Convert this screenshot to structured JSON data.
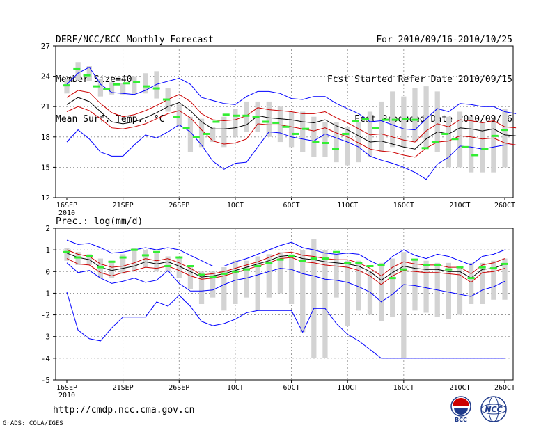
{
  "header": {
    "title": "DERF/NCC/BCC Monthly Forecast",
    "member_size": "Member Size=40",
    "variable": "Mean Surf. Temp.: °C",
    "period": "For 2010/09/16-2010/10/25",
    "started": "Fcst Started Refer Date 2010/09/15",
    "produced": "Fcst Produced Date 2010/09/16"
  },
  "footer": {
    "url": "http://cmdp.ncc.cma.gov.cn",
    "grads": "GrADS: COLA/IGES",
    "logo_bcc": "BCC",
    "logo_ncc": "NCC"
  },
  "colors": {
    "envelope": "#0000ff",
    "quartile": "#cc0000",
    "median": "#000000",
    "box": "#d3d3d3",
    "dash": "#33ee33",
    "grid": "#888888"
  },
  "chart_data": [
    {
      "type": "line",
      "title": "Mean Surf. Temp.: °C",
      "ylim": [
        12,
        27
      ],
      "yticks": [
        12,
        15,
        18,
        21,
        24,
        27
      ],
      "xlim": [
        0,
        39
      ],
      "xtick_positions": [
        0,
        5,
        10,
        15,
        20,
        25,
        30,
        35,
        39
      ],
      "xtick_labels": [
        "16SEP",
        "21SEP",
        "26SEP",
        "1OCT",
        "6OCT",
        "11OCT",
        "16OCT",
        "21OCT",
        "26OCT"
      ],
      "xsub_label": "2010",
      "series": [
        {
          "name": "max",
          "values": [
            17.5,
            18.7,
            17.8,
            16.5,
            16.1,
            16.1,
            17.2,
            18.2,
            17.9,
            18.5,
            19.2,
            18.5,
            17.2,
            15.6,
            14.8,
            15.4,
            15.5,
            17.0,
            18.5,
            18.4,
            18.0,
            17.8,
            17.6,
            18.3,
            17.9,
            17.5,
            17.0,
            16.1,
            15.7,
            15.4,
            15.0,
            14.5,
            13.8,
            15.3,
            16.0,
            17.1,
            17.0,
            16.8,
            17.0,
            17.2,
            17.2
          ]
        },
        {
          "name": "q25",
          "values": [
            20.5,
            21.0,
            20.6,
            19.8,
            18.9,
            18.8,
            19.0,
            19.3,
            19.8,
            20.3,
            20.6,
            19.9,
            18.7,
            17.6,
            17.3,
            17.4,
            17.8,
            19.3,
            19.2,
            19.2,
            19.0,
            18.8,
            18.6,
            18.9,
            18.4,
            18.0,
            17.4,
            16.8,
            16.6,
            16.5,
            16.2,
            16.0,
            16.9,
            17.5,
            17.6,
            18.1,
            18.0,
            17.8,
            17.9,
            17.4,
            17.2
          ]
        },
        {
          "name": "median",
          "values": [
            21.2,
            21.9,
            21.5,
            20.5,
            19.5,
            19.3,
            19.5,
            19.9,
            20.4,
            21.0,
            21.4,
            20.6,
            19.5,
            18.8,
            18.8,
            18.9,
            19.2,
            20.1,
            19.9,
            19.8,
            19.7,
            19.5,
            19.4,
            19.7,
            19.1,
            18.7,
            18.1,
            17.5,
            17.6,
            17.3,
            17.0,
            16.8,
            17.8,
            18.5,
            18.3,
            18.9,
            18.8,
            18.6,
            18.8,
            18.2,
            18.1
          ]
        },
        {
          "name": "q75",
          "values": [
            21.9,
            22.6,
            22.4,
            21.3,
            20.4,
            20.0,
            20.2,
            20.6,
            21.1,
            21.7,
            22.2,
            21.5,
            20.3,
            19.7,
            19.6,
            19.7,
            20.1,
            20.9,
            20.7,
            20.6,
            20.5,
            20.3,
            20.3,
            20.5,
            19.9,
            19.4,
            18.8,
            18.2,
            18.3,
            18.0,
            17.7,
            17.5,
            18.6,
            19.3,
            19.0,
            19.7,
            19.6,
            19.4,
            19.6,
            19.0,
            18.9
          ]
        },
        {
          "name": "min",
          "values": [
            23.2,
            24.3,
            24.9,
            23.2,
            22.4,
            22.3,
            22.2,
            22.6,
            23.2,
            23.5,
            23.8,
            23.2,
            21.9,
            21.6,
            21.3,
            21.2,
            22.0,
            22.5,
            22.5,
            22.3,
            21.8,
            21.7,
            22.0,
            22.0,
            21.3,
            20.8,
            20.3,
            19.5,
            19.6,
            19.2,
            18.8,
            18.7,
            19.8,
            20.8,
            20.5,
            21.3,
            21.2,
            21.0,
            21.0,
            20.5,
            20.3
          ]
        }
      ],
      "boxes": [
        {
          "lo": 22.3,
          "hi": 23.7
        },
        {
          "lo": 23.6,
          "hi": 25.4
        },
        {
          "lo": 23.5,
          "hi": 25.0
        },
        {
          "lo": 22.0,
          "hi": 23.7
        },
        {
          "lo": 22.2,
          "hi": 23.4
        },
        {
          "lo": 22.2,
          "hi": 23.3
        },
        {
          "lo": 22.2,
          "hi": 24.0
        },
        {
          "lo": 22.3,
          "hi": 24.3
        },
        {
          "lo": 21.8,
          "hi": 24.5
        },
        {
          "lo": 20.5,
          "hi": 22.8
        },
        {
          "lo": 19.0,
          "hi": 21.2
        },
        {
          "lo": 16.5,
          "hi": 20.0
        },
        {
          "lo": 17.0,
          "hi": 19.8
        },
        {
          "lo": 17.5,
          "hi": 19.0
        },
        {
          "lo": 17.0,
          "hi": 20.0
        },
        {
          "lo": 18.0,
          "hi": 20.8
        },
        {
          "lo": 18.5,
          "hi": 21.5
        },
        {
          "lo": 18.5,
          "hi": 21.5
        },
        {
          "lo": 18.0,
          "hi": 21.5
        },
        {
          "lo": 17.5,
          "hi": 21.0
        },
        {
          "lo": 17.0,
          "hi": 20.5
        },
        {
          "lo": 16.5,
          "hi": 20.5
        },
        {
          "lo": 16.0,
          "hi": 20.0
        },
        {
          "lo": 16.0,
          "hi": 19.5
        },
        {
          "lo": 15.5,
          "hi": 19.5
        },
        {
          "lo": 15.2,
          "hi": 19.0
        },
        {
          "lo": 15.5,
          "hi": 19.5
        },
        {
          "lo": 16.0,
          "hi": 20.5
        },
        {
          "lo": 16.5,
          "hi": 21.5
        },
        {
          "lo": 17.0,
          "hi": 22.5
        },
        {
          "lo": 17.0,
          "hi": 22.0
        },
        {
          "lo": 17.5,
          "hi": 22.8
        },
        {
          "lo": 17.0,
          "hi": 23.0
        },
        {
          "lo": 16.5,
          "hi": 22.5
        },
        {
          "lo": 15.0,
          "hi": 20.0
        },
        {
          "lo": 15.0,
          "hi": 20.5
        },
        {
          "lo": 14.5,
          "hi": 20.0
        },
        {
          "lo": 14.5,
          "hi": 19.5
        },
        {
          "lo": 14.5,
          "hi": 19.5
        },
        {
          "lo": 15.0,
          "hi": 20.8
        }
      ],
      "dashes": [
        23.1,
        24.7,
        24.1,
        23.0,
        22.7,
        23.2,
        23.3,
        23.4,
        23.0,
        22.8,
        21.7,
        20.0,
        18.9,
        18.0,
        18.3,
        19.5,
        20.2,
        20.1,
        20.1,
        20.0,
        19.5,
        19.4,
        19.0,
        18.3,
        18.8,
        17.5,
        17.4,
        16.8,
        18.3,
        19.6,
        19.8,
        18.9,
        19.7,
        19.7,
        19.8,
        19.7,
        16.9,
        17.5,
        18.3,
        17.8,
        17.0,
        16.2,
        16.8,
        18.1,
        18.7
      ]
    },
    {
      "type": "line",
      "title": "Prec.: log(mm/d)",
      "ylim": [
        -5,
        2
      ],
      "yticks": [
        -5,
        -4,
        -3,
        -2,
        -1,
        0,
        1,
        2
      ],
      "xlim": [
        0,
        39
      ],
      "xtick_positions": [
        0,
        5,
        10,
        15,
        20,
        25,
        30,
        35,
        39
      ],
      "xtick_labels": [
        "16SEP",
        "21SEP",
        "26SEP",
        "1OCT",
        "6OCT",
        "11OCT",
        "16OCT",
        "21OCT",
        "26OCT"
      ],
      "xsub_label": "2010",
      "series": [
        {
          "name": "max",
          "values": [
            1.45,
            1.25,
            1.3,
            1.1,
            0.85,
            0.9,
            1.0,
            1.1,
            1.0,
            1.1,
            1.0,
            0.75,
            0.5,
            0.25,
            0.25,
            0.45,
            0.6,
            0.8,
            1.0,
            1.2,
            1.35,
            1.1,
            1.0,
            0.85,
            0.8,
            0.85,
            0.8,
            0.5,
            0.25,
            0.7,
            1.0,
            0.75,
            0.6,
            0.8,
            0.7,
            0.5,
            0.3,
            0.7,
            0.8,
            1.0
          ]
        },
        {
          "name": "q75",
          "values": [
            1.0,
            0.8,
            0.7,
            0.35,
            0.2,
            0.25,
            0.4,
            0.6,
            0.5,
            0.6,
            0.4,
            0.15,
            -0.15,
            -0.1,
            0.0,
            0.15,
            0.3,
            0.45,
            0.65,
            0.85,
            0.9,
            0.75,
            0.7,
            0.6,
            0.55,
            0.55,
            0.4,
            0.15,
            -0.2,
            0.2,
            0.45,
            0.35,
            0.3,
            0.3,
            0.2,
            0.2,
            -0.1,
            0.3,
            0.4,
            0.6
          ]
        },
        {
          "name": "median",
          "values": [
            0.85,
            0.65,
            0.55,
            0.2,
            0.05,
            0.15,
            0.25,
            0.45,
            0.35,
            0.45,
            0.25,
            0.0,
            -0.25,
            -0.2,
            -0.1,
            0.05,
            0.2,
            0.35,
            0.5,
            0.7,
            0.75,
            0.6,
            0.55,
            0.45,
            0.4,
            0.35,
            0.25,
            0.0,
            -0.4,
            -0.05,
            0.25,
            0.15,
            0.1,
            0.1,
            0.0,
            0.0,
            -0.3,
            0.1,
            0.15,
            0.35
          ]
        },
        {
          "name": "q25",
          "values": [
            0.6,
            0.35,
            0.3,
            -0.05,
            -0.2,
            -0.05,
            0.05,
            0.2,
            0.15,
            0.25,
            0.05,
            -0.2,
            -0.35,
            -0.3,
            -0.2,
            -0.05,
            0.1,
            0.25,
            0.4,
            0.6,
            0.65,
            0.45,
            0.4,
            0.3,
            0.25,
            0.2,
            0.05,
            -0.2,
            -0.6,
            -0.2,
            0.05,
            0.0,
            -0.05,
            -0.05,
            -0.1,
            -0.15,
            -0.5,
            -0.05,
            0.0,
            0.15
          ]
        },
        {
          "name": "min",
          "values": [
            0.4,
            -0.05,
            0.05,
            -0.3,
            -0.55,
            -0.45,
            -0.3,
            -0.5,
            -0.4,
            0.05,
            -0.55,
            -0.9,
            -0.9,
            -0.85,
            -0.6,
            -0.4,
            -0.3,
            -0.15,
            0.0,
            0.15,
            0.1,
            -0.1,
            -0.2,
            -0.35,
            -0.4,
            -0.5,
            -0.7,
            -0.95,
            -1.4,
            -1.05,
            -0.6,
            -0.65,
            -0.75,
            -0.85,
            -0.95,
            -1.05,
            -1.15,
            -0.85,
            -0.7,
            -0.45
          ]
        },
        {
          "name": "envmin",
          "values": [
            -0.95,
            -2.7,
            -3.1,
            -3.2,
            -2.6,
            -2.1,
            -2.1,
            -2.1,
            -1.4,
            -1.6,
            -1.1,
            -1.6,
            -2.3,
            -2.5,
            -2.4,
            -2.2,
            -1.9,
            -1.8,
            -1.8,
            -1.8,
            -1.8,
            -2.8,
            -1.7,
            -1.7,
            -2.4,
            -2.9,
            -3.2,
            -3.6,
            -4.0,
            -4.0,
            -4.0,
            -4.0,
            -4.0,
            -4.0,
            -4.0,
            -4.0,
            -4.0,
            -4.0,
            -4.0,
            -4.0
          ]
        }
      ],
      "boxes": [
        {
          "lo": 0.5,
          "hi": 1.1
        },
        {
          "lo": 0.3,
          "hi": 0.9
        },
        {
          "lo": 0.3,
          "hi": 0.8
        },
        {
          "lo": -0.3,
          "hi": 0.6
        },
        {
          "lo": -0.3,
          "hi": 0.5
        },
        {
          "lo": -0.1,
          "hi": 0.8
        },
        {
          "lo": 0.0,
          "hi": 1.1
        },
        {
          "lo": 0.2,
          "hi": 1.0
        },
        {
          "lo": 0.0,
          "hi": 0.9
        },
        {
          "lo": 0.0,
          "hi": 0.7
        },
        {
          "lo": -0.3,
          "hi": 0.7
        },
        {
          "lo": -0.8,
          "hi": 0.2
        },
        {
          "lo": -1.5,
          "hi": 0.0
        },
        {
          "lo": -1.2,
          "hi": 0.0
        },
        {
          "lo": -1.8,
          "hi": 0.2
        },
        {
          "lo": -1.5,
          "hi": 0.5
        },
        {
          "lo": -1.2,
          "hi": 0.5
        },
        {
          "lo": -1.8,
          "hi": 0.7
        },
        {
          "lo": -1.2,
          "hi": 0.8
        },
        {
          "lo": -1.0,
          "hi": 0.9
        },
        {
          "lo": -1.5,
          "hi": 0.8
        },
        {
          "lo": -2.8,
          "hi": 1.0
        },
        {
          "lo": -4.0,
          "hi": 1.5
        },
        {
          "lo": -4.0,
          "hi": 1.0
        },
        {
          "lo": -1.2,
          "hi": 0.8
        },
        {
          "lo": -2.5,
          "hi": 0.5
        },
        {
          "lo": -1.8,
          "hi": 0.5
        },
        {
          "lo": -2.0,
          "hi": 0.0
        },
        {
          "lo": -2.3,
          "hi": 0.4
        },
        {
          "lo": -2.1,
          "hi": 0.6
        },
        {
          "lo": -4.0,
          "hi": 0.9
        },
        {
          "lo": -1.8,
          "hi": 0.6
        },
        {
          "lo": -1.9,
          "hi": 0.5
        },
        {
          "lo": -2.1,
          "hi": 0.4
        },
        {
          "lo": -2.2,
          "hi": 0.4
        },
        {
          "lo": -2.0,
          "hi": 0.2
        },
        {
          "lo": -1.5,
          "hi": 0.4
        },
        {
          "lo": -1.5,
          "hi": 0.4
        },
        {
          "lo": -1.3,
          "hi": 0.5
        },
        {
          "lo": -1.3,
          "hi": 0.6
        }
      ],
      "dashes": [
        0.9,
        0.65,
        0.7,
        0.2,
        0.45,
        0.65,
        1.0,
        0.75,
        0.9,
        0.25,
        0.65,
        0.25,
        -0.15,
        -0.25,
        -0.1,
        0.0,
        0.1,
        0.25,
        0.4,
        0.55,
        0.7,
        0.5,
        0.6,
        0.6,
        0.9,
        0.4,
        0.4,
        0.25,
        0.3,
        -0.3,
        0.1,
        0.55,
        0.3,
        0.3,
        0.1,
        0.2,
        -0.3,
        0.2,
        0.15,
        0.35
      ]
    }
  ]
}
